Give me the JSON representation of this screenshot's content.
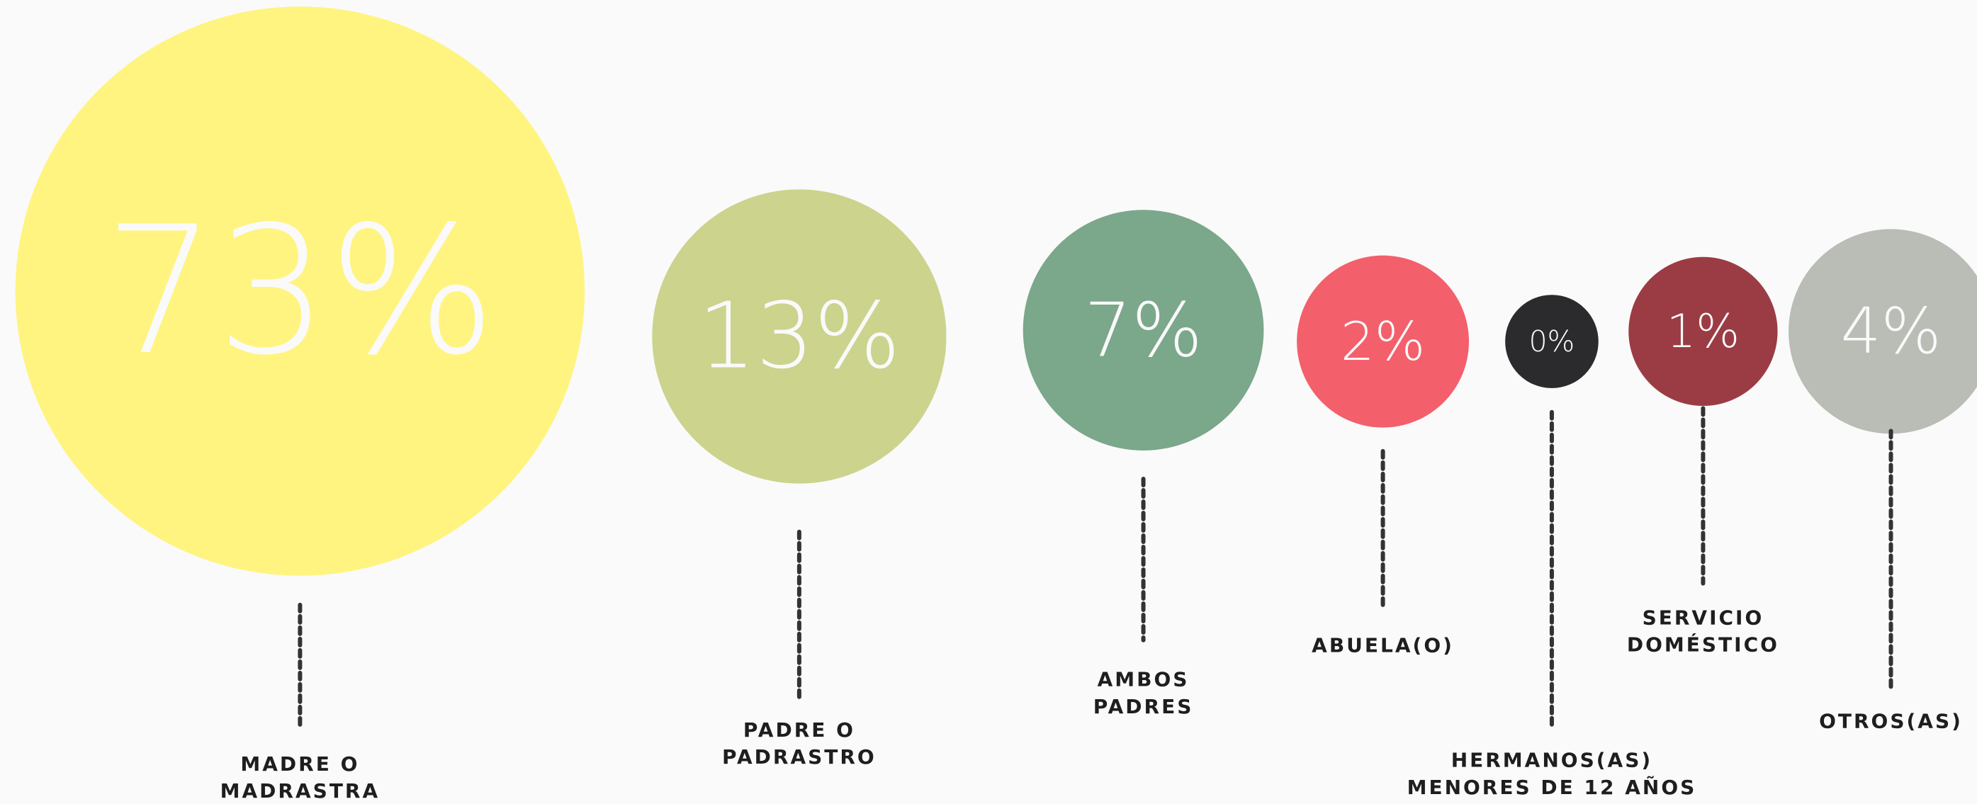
{
  "chart_data": {
    "type": "bubble",
    "categories": [
      [
        "MADRE O",
        "MADRASTRA"
      ],
      [
        "PADRE O",
        "PADRASTRO"
      ],
      [
        "AMBOS",
        "PADRES"
      ],
      [
        "ABUELA(O)"
      ],
      [
        "HERMANOS(AS)",
        "MENORES DE 12 AÑOS"
      ],
      [
        "SERVICIO",
        "DOMÉSTICO"
      ],
      [
        "OTROS(AS)"
      ]
    ],
    "values": [
      73,
      13,
      7,
      2,
      0,
      1,
      4
    ],
    "value_labels": [
      "73%",
      "13%",
      "7%",
      "2%",
      "0%",
      "1%",
      "4%"
    ],
    "colors": [
      "#fff47f",
      "#cbd38d",
      "#7ba78a",
      "#f35f6b",
      "#2b2b2e",
      "#9b3c44",
      "#b9bdb5"
    ]
  }
}
